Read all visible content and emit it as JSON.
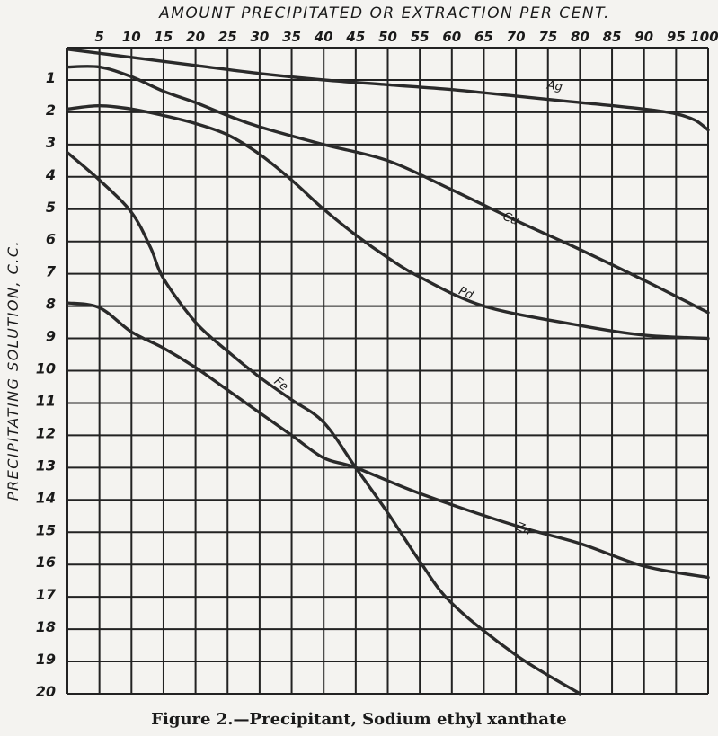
{
  "caption": "Figure 2.—Precipitant, Sodium ethyl xanthate",
  "chart_data": {
    "type": "line",
    "title": "Figure 2.—Precipitant, Sodium ethyl xanthate",
    "xlabel": "AMOUNT PRECIPITATED OR EXTRACTION PER CENT.",
    "ylabel": "PRECIPITATING SOLUTION, C.C.",
    "xlim": [
      0,
      100
    ],
    "ylim": [
      0,
      20
    ],
    "y_inverted": true,
    "x_axis_position": "top",
    "grid": true,
    "x_ticks": [
      5,
      10,
      15,
      20,
      25,
      30,
      35,
      40,
      45,
      50,
      55,
      60,
      65,
      70,
      75,
      80,
      85,
      90,
      95,
      100
    ],
    "y_ticks": [
      1,
      2,
      3,
      4,
      5,
      6,
      7,
      8,
      9,
      10,
      11,
      12,
      13,
      14,
      15,
      16,
      17,
      18,
      19,
      20
    ],
    "legend": "inline labels on curves",
    "series": [
      {
        "name": "Ag",
        "label_at": [
          76,
          1.3
        ],
        "x": [
          0,
          10,
          20,
          30,
          40,
          50,
          60,
          70,
          80,
          90,
          95,
          98,
          100
        ],
        "y": [
          0.05,
          0.3,
          0.55,
          0.8,
          1.0,
          1.15,
          1.3,
          1.5,
          1.7,
          1.9,
          2.05,
          2.25,
          2.55
        ]
      },
      {
        "name": "Cu",
        "label_at": [
          69,
          5.4
        ],
        "x": [
          0,
          5,
          10,
          15,
          20,
          25,
          30,
          40,
          50,
          60,
          70,
          80,
          90,
          100
        ],
        "y": [
          0.6,
          0.6,
          0.9,
          1.35,
          1.7,
          2.1,
          2.45,
          3.0,
          3.5,
          4.4,
          5.35,
          6.25,
          7.2,
          8.2
        ]
      },
      {
        "name": "Pd",
        "label_at": [
          62,
          7.7
        ],
        "x": [
          0,
          5,
          10,
          15,
          20,
          25,
          30,
          35,
          40,
          45,
          50,
          55,
          65,
          80,
          90,
          100
        ],
        "y": [
          1.9,
          1.8,
          1.9,
          2.1,
          2.35,
          2.7,
          3.3,
          4.1,
          5.0,
          5.8,
          6.5,
          7.1,
          8.0,
          8.6,
          8.9,
          9.0
        ]
      },
      {
        "name": "Fe",
        "label_at": [
          33,
          10.5
        ],
        "x": [
          0,
          5,
          10,
          13,
          15,
          20,
          25,
          30,
          35,
          40,
          45,
          50,
          55,
          60,
          70,
          80
        ],
        "y": [
          3.25,
          4.1,
          5.1,
          6.2,
          7.15,
          8.5,
          9.4,
          10.2,
          10.9,
          11.6,
          13.0,
          14.4,
          15.9,
          17.2,
          18.8,
          20.0
        ]
      },
      {
        "name": "Zn",
        "label_at": [
          71,
          15.0
        ],
        "x": [
          0,
          5,
          10,
          15,
          20,
          25,
          30,
          35,
          40,
          45,
          55,
          70,
          80,
          90,
          100
        ],
        "y": [
          7.9,
          8.05,
          8.8,
          9.3,
          9.9,
          10.6,
          11.3,
          12.0,
          12.7,
          13.0,
          13.8,
          14.8,
          15.35,
          16.05,
          16.4
        ]
      }
    ]
  }
}
